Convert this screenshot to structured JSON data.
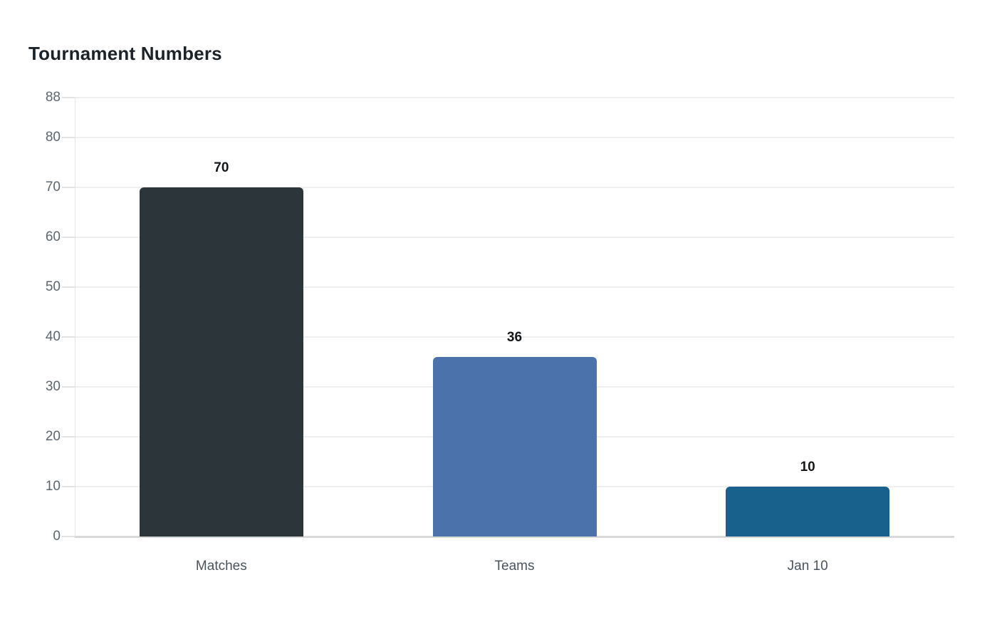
{
  "page": {
    "background_color": "#ffffff"
  },
  "chart": {
    "title": "Tournament Numbers",
    "title_color": "#1b2228"
  },
  "chart_data": {
    "type": "bar",
    "title": "Tournament Numbers",
    "categories": [
      "Matches",
      "Teams",
      "Jan 10"
    ],
    "values": [
      70,
      36,
      10
    ],
    "value_labels": [
      "70",
      "36",
      "10"
    ],
    "bar_colors": [
      "#2c363a",
      "#4b72aa",
      "#17618c"
    ],
    "xlabel": "",
    "ylabel": "",
    "ylim": [
      0,
      88
    ],
    "yticks": [
      0,
      10,
      20,
      30,
      40,
      50,
      60,
      70,
      80,
      88
    ],
    "grid": true,
    "legend": false,
    "grid_color": "#eeeeee",
    "baseline_color": "#d9d9d9",
    "y_tick_label_color": "#5c6670",
    "x_tick_label_color": "#49545e",
    "value_label_color": "#15181b"
  }
}
